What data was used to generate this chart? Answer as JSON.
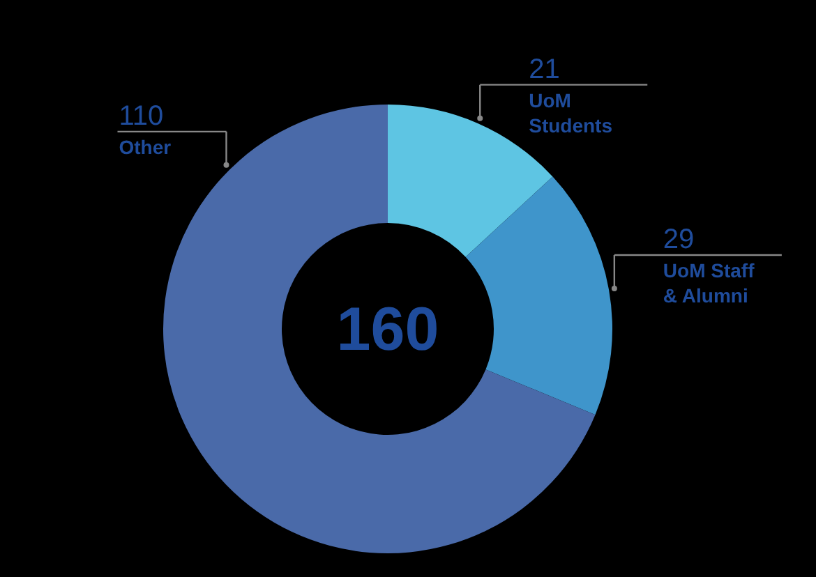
{
  "chart_data": {
    "type": "donut",
    "categories": [
      "UoM Students",
      "UoM Staff & Alumni",
      "Other"
    ],
    "values": [
      21,
      29,
      110
    ],
    "colors": [
      "#5ec5e3",
      "#3f95cb",
      "#4a6aa9"
    ],
    "data_labels": true,
    "annotations": [
      "160"
    ]
  }
}
